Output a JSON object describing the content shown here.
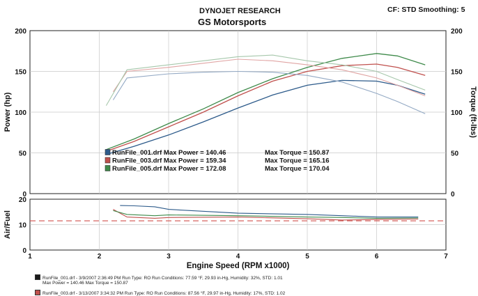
{
  "header": {
    "brand": "DYNOJET RESEARCH",
    "title": "GS Motorsports",
    "settings": "CF: STD   Smoothing: 5"
  },
  "chart_data": {
    "type": "line",
    "top_panel": {
      "xlim": [
        1,
        7
      ],
      "ylim_left": [
        0,
        200
      ],
      "ylim_right": [
        0,
        200
      ],
      "ylabel_left": "Power (hp)",
      "ylabel_right": "Torque (ft-lbs)",
      "yticks": [
        "0",
        "50",
        "100",
        "150",
        "200"
      ],
      "series": [
        {
          "kind": "power",
          "run": 1,
          "color": "#2c5a8a",
          "x": [
            2.1,
            2.5,
            3.0,
            3.5,
            4.0,
            4.5,
            5.0,
            5.5,
            6.0,
            6.3,
            6.7
          ],
          "y": [
            48,
            58,
            72,
            88,
            105,
            121,
            133,
            139,
            138,
            133,
            122
          ]
        },
        {
          "kind": "power",
          "run": 3,
          "color": "#c0504d",
          "x": [
            2.1,
            2.5,
            3.0,
            3.5,
            4.0,
            4.5,
            5.0,
            5.5,
            6.0,
            6.3,
            6.7
          ],
          "y": [
            52,
            64,
            82,
            100,
            120,
            138,
            150,
            157,
            159,
            155,
            145
          ]
        },
        {
          "kind": "power",
          "run": 5,
          "color": "#3e8a4a",
          "x": [
            2.1,
            2.5,
            3.0,
            3.5,
            4.0,
            4.5,
            5.0,
            5.5,
            6.0,
            6.3,
            6.7
          ],
          "y": [
            54,
            67,
            86,
            104,
            124,
            141,
            155,
            166,
            172,
            169,
            158
          ]
        },
        {
          "kind": "torque",
          "run": 1,
          "color": "#93a9c4",
          "x": [
            2.2,
            2.4,
            3.0,
            3.5,
            4.0,
            4.5,
            5.0,
            5.5,
            6.0,
            6.3,
            6.7
          ],
          "y": [
            115,
            142,
            147,
            149,
            150,
            149,
            145,
            137,
            123,
            113,
            98
          ]
        },
        {
          "kind": "torque",
          "run": 3,
          "color": "#e0a4a3",
          "x": [
            2.2,
            2.4,
            3.0,
            3.5,
            4.0,
            4.5,
            5.0,
            5.5,
            6.0,
            6.3,
            6.7
          ],
          "y": [
            125,
            150,
            155,
            160,
            165,
            163,
            158,
            152,
            142,
            133,
            120
          ]
        },
        {
          "kind": "torque",
          "run": 5,
          "color": "#a6c7ab",
          "x": [
            2.1,
            2.4,
            3.0,
            3.5,
            4.0,
            4.5,
            5.0,
            5.5,
            6.0,
            6.3,
            6.7
          ],
          "y": [
            108,
            152,
            158,
            163,
            168,
            170,
            163,
            158,
            150,
            140,
            127
          ]
        }
      ]
    },
    "bottom_panel": {
      "xlim": [
        1,
        7
      ],
      "ylim": [
        0,
        20
      ],
      "ylabel": "Air/Fuel",
      "yticks": [
        "0",
        "10",
        "20"
      ],
      "reference_line": 11.5,
      "series": [
        {
          "run": 1,
          "color": "#2c5a8a",
          "x": [
            2.3,
            2.5,
            2.8,
            3.0,
            4.0,
            5.0,
            5.5,
            6.0,
            6.6
          ],
          "y": [
            17.5,
            17.4,
            17.0,
            16.0,
            14.5,
            14.0,
            13.5,
            13.0,
            13.0
          ]
        },
        {
          "run": 3,
          "color": "#c0504d",
          "x": [
            2.2,
            2.4,
            2.8,
            3.0,
            4.0,
            5.0,
            5.5,
            6.0,
            6.6
          ],
          "y": [
            16.0,
            13.0,
            12.5,
            12.8,
            13.0,
            12.3,
            11.8,
            12.0,
            12.2
          ]
        },
        {
          "run": 5,
          "color": "#3e8a4a",
          "x": [
            2.2,
            2.4,
            2.8,
            3.0,
            4.0,
            5.0,
            5.5,
            6.0,
            6.6
          ],
          "y": [
            15.5,
            14.0,
            13.5,
            13.8,
            13.5,
            13.0,
            12.8,
            12.5,
            12.6
          ]
        }
      ]
    },
    "xlabel": "Engine Speed (RPM x1000)",
    "xticks": [
      "1",
      "2",
      "3",
      "4",
      "5",
      "6",
      "7"
    ],
    "legend": [
      {
        "label": "RunFile_001.drf Max Power = 140.46",
        "torque": "Max Torque = 150.87",
        "color": "#2c5a8a"
      },
      {
        "label": "RunFile_003.drf Max Power = 159.34",
        "torque": "Max Torque = 165.16",
        "color": "#c0504d"
      },
      {
        "label": "RunFile_005.drf Max Power = 172.08",
        "torque": "Max Torque = 170.04",
        "color": "#3e8a4a"
      }
    ]
  },
  "footer": [
    {
      "line1": "RunFile_001.drf - 3/9/2007 2:36:49 PM  Run Type: RO  Run Conditions: 77.59 °F, 29.93 in-Hg,  Humidity:  32%, STD: 1.01",
      "line2": "Max Power = 140.46  Max Torque = 150.87",
      "color": "#1a1a1a"
    },
    {
      "line1": "RunFile_003.drf - 3/13/2007 3:34:32 PM  Run Type: RO  Run Conditions: 87.56 °F, 29.97 in-Hg,  Humidity:  17%, STD: 1.02",
      "line2": "",
      "color": "#c0504d"
    }
  ]
}
